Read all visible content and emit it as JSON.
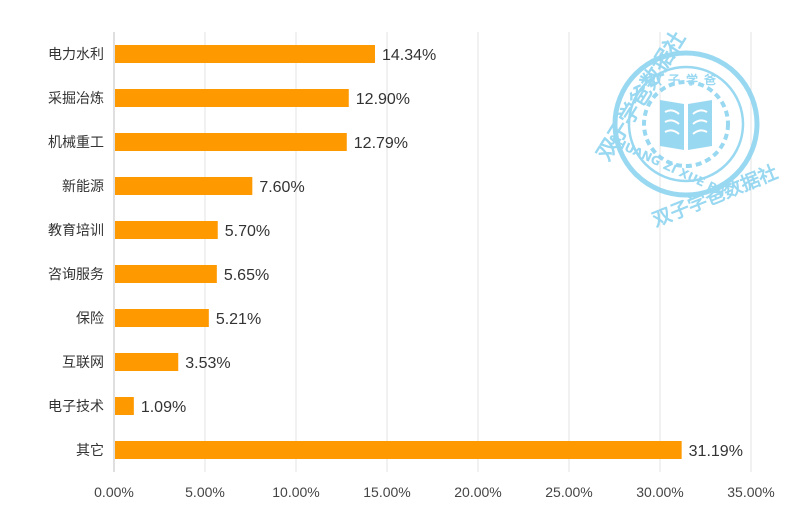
{
  "chart_data": {
    "type": "bar",
    "orientation": "horizontal",
    "categories": [
      "电力水利",
      "采掘冶炼",
      "机械重工",
      "新能源",
      "教育培训",
      "咨询服务",
      "保险",
      "互联网",
      "电子技术",
      "其它"
    ],
    "values": [
      14.34,
      12.9,
      12.79,
      7.6,
      5.7,
      5.65,
      5.21,
      3.53,
      1.09,
      31.19
    ],
    "value_labels": [
      "14.34%",
      "12.90%",
      "12.79%",
      "7.60%",
      "5.70%",
      "5.65%",
      "5.21%",
      "3.53%",
      "1.09%",
      "31.19%"
    ],
    "x_ticks": [
      "0.00%",
      "5.00%",
      "10.00%",
      "15.00%",
      "20.00%",
      "25.00%",
      "30.00%",
      "35.00%"
    ],
    "xlim": [
      0,
      35
    ],
    "title": "",
    "xlabel": "",
    "ylabel": "",
    "grid": "vertical",
    "legend": "none",
    "bar_color": "#ff9900",
    "grid_color": "#e3e3e3"
  },
  "watermark": {
    "top_text": "双子学爸数据社",
    "inner_text": "双子学爸",
    "latin_text": "SHUANG ZI XUE BA",
    "bottom_text": "双子学爸数据社",
    "color": "#8fd4f0"
  }
}
